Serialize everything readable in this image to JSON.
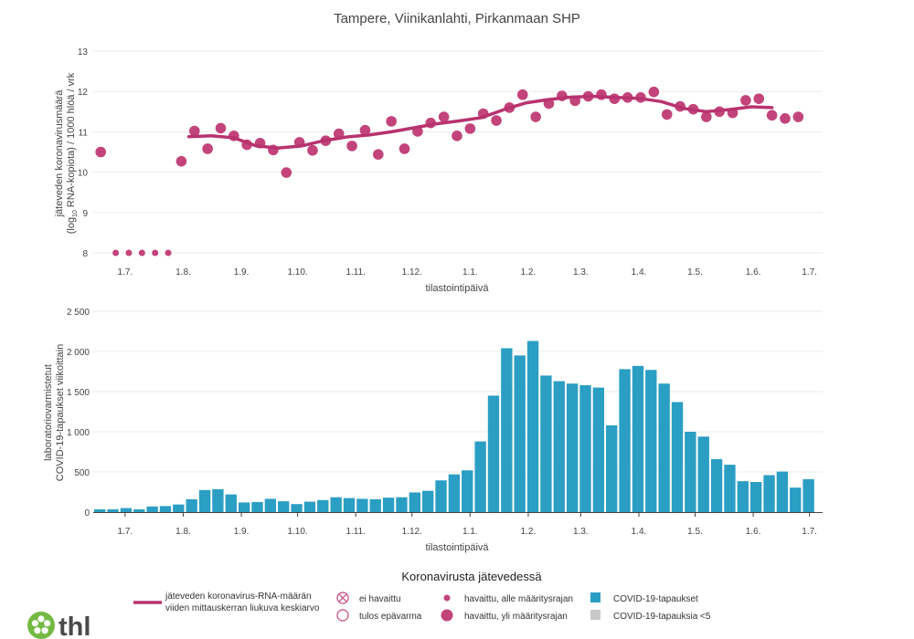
{
  "title": "Tampere, Viinikanlahti, Pirkanmaan SHP",
  "chart_data": [
    {
      "type": "scatter",
      "ylabel_line1": "jäteveden koronavirusmäärä",
      "ylabel_line2_pre": "(log",
      "ylabel_line2_sub": "10",
      "ylabel_line2_post": " RNA-kopiota) / 1000 hlöä / vrk",
      "xlabel": "tilastointipäivä",
      "ylim": [
        7.7,
        13
      ],
      "yticks": [
        "8",
        "9",
        "10",
        "11",
        "12",
        "13"
      ],
      "x_start": "2021-06-14",
      "x_end": "2022-07-08",
      "xticks": [
        {
          "date": "2021-07-01",
          "label": "1.7."
        },
        {
          "date": "2021-08-01",
          "label": "1.8."
        },
        {
          "date": "2021-09-01",
          "label": "1.9."
        },
        {
          "date": "2021-10-01",
          "label": "1.10."
        },
        {
          "date": "2021-11-01",
          "label": "1.11."
        },
        {
          "date": "2021-12-01",
          "label": "1.12."
        },
        {
          "date": "2022-01-01",
          "label": "1.1."
        },
        {
          "date": "2022-02-01",
          "label": "1.2."
        },
        {
          "date": "2022-03-01",
          "label": "1.3."
        },
        {
          "date": "2022-04-01",
          "label": "1.4."
        },
        {
          "date": "2022-05-01",
          "label": "1.5."
        },
        {
          "date": "2022-06-01",
          "label": "1.6."
        },
        {
          "date": "2022-07-01",
          "label": "1.7."
        }
      ],
      "below_limit_points": [
        {
          "x": "2021-06-26",
          "y": 8.0
        },
        {
          "x": "2021-07-03",
          "y": 8.0
        },
        {
          "x": "2021-07-10",
          "y": 8.0
        },
        {
          "x": "2021-07-17",
          "y": 8.0
        },
        {
          "x": "2021-07-24",
          "y": 8.0
        }
      ],
      "above_limit_points": [
        {
          "x": "2021-06-18",
          "y": 10.5
        },
        {
          "x": "2021-07-31",
          "y": 10.27
        },
        {
          "x": "2021-08-07",
          "y": 11.02
        },
        {
          "x": "2021-08-14",
          "y": 10.58
        },
        {
          "x": "2021-08-21",
          "y": 11.09
        },
        {
          "x": "2021-08-28",
          "y": 10.9
        },
        {
          "x": "2021-09-04",
          "y": 10.68
        },
        {
          "x": "2021-09-11",
          "y": 10.72
        },
        {
          "x": "2021-09-18",
          "y": 10.55
        },
        {
          "x": "2021-09-25",
          "y": 9.99
        },
        {
          "x": "2021-10-02",
          "y": 10.74
        },
        {
          "x": "2021-10-09",
          "y": 10.54
        },
        {
          "x": "2021-10-16",
          "y": 10.78
        },
        {
          "x": "2021-10-23",
          "y": 10.95
        },
        {
          "x": "2021-10-30",
          "y": 10.65
        },
        {
          "x": "2021-11-06",
          "y": 11.04
        },
        {
          "x": "2021-11-13",
          "y": 10.44
        },
        {
          "x": "2021-11-20",
          "y": 11.26
        },
        {
          "x": "2021-11-27",
          "y": 10.58
        },
        {
          "x": "2021-12-04",
          "y": 11.01
        },
        {
          "x": "2021-12-11",
          "y": 11.22
        },
        {
          "x": "2021-12-18",
          "y": 11.37
        },
        {
          "x": "2021-12-25",
          "y": 10.9
        },
        {
          "x": "2022-01-01",
          "y": 11.08
        },
        {
          "x": "2022-01-08",
          "y": 11.45
        },
        {
          "x": "2022-01-15",
          "y": 11.28
        },
        {
          "x": "2022-01-22",
          "y": 11.6
        },
        {
          "x": "2022-01-29",
          "y": 11.92
        },
        {
          "x": "2022-02-05",
          "y": 11.37
        },
        {
          "x": "2022-02-12",
          "y": 11.7
        },
        {
          "x": "2022-02-19",
          "y": 11.89
        },
        {
          "x": "2022-02-26",
          "y": 11.77
        },
        {
          "x": "2022-03-05",
          "y": 11.88
        },
        {
          "x": "2022-03-12",
          "y": 11.92
        },
        {
          "x": "2022-03-19",
          "y": 11.82
        },
        {
          "x": "2022-03-26",
          "y": 11.85
        },
        {
          "x": "2022-04-02",
          "y": 11.85
        },
        {
          "x": "2022-04-09",
          "y": 11.99
        },
        {
          "x": "2022-04-16",
          "y": 11.43
        },
        {
          "x": "2022-04-23",
          "y": 11.63
        },
        {
          "x": "2022-04-30",
          "y": 11.56
        },
        {
          "x": "2022-05-07",
          "y": 11.37
        },
        {
          "x": "2022-05-14",
          "y": 11.5
        },
        {
          "x": "2022-05-21",
          "y": 11.47
        },
        {
          "x": "2022-05-28",
          "y": 11.78
        },
        {
          "x": "2022-06-04",
          "y": 11.82
        },
        {
          "x": "2022-06-11",
          "y": 11.41
        },
        {
          "x": "2022-06-18",
          "y": 11.33
        },
        {
          "x": "2022-06-25",
          "y": 11.37
        }
      ],
      "moving_average": [
        {
          "x": "2021-08-04",
          "y": 10.88
        },
        {
          "x": "2021-08-16",
          "y": 10.9
        },
        {
          "x": "2021-08-28",
          "y": 10.85
        },
        {
          "x": "2021-09-09",
          "y": 10.65
        },
        {
          "x": "2021-09-21",
          "y": 10.6
        },
        {
          "x": "2021-10-03",
          "y": 10.65
        },
        {
          "x": "2021-10-15",
          "y": 10.78
        },
        {
          "x": "2021-10-27",
          "y": 10.87
        },
        {
          "x": "2021-11-08",
          "y": 10.92
        },
        {
          "x": "2021-11-20",
          "y": 11.0
        },
        {
          "x": "2021-12-02",
          "y": 11.1
        },
        {
          "x": "2021-12-14",
          "y": 11.2
        },
        {
          "x": "2021-12-26",
          "y": 11.27
        },
        {
          "x": "2022-01-07",
          "y": 11.35
        },
        {
          "x": "2022-01-19",
          "y": 11.55
        },
        {
          "x": "2022-01-31",
          "y": 11.72
        },
        {
          "x": "2022-02-12",
          "y": 11.8
        },
        {
          "x": "2022-02-24",
          "y": 11.86
        },
        {
          "x": "2022-03-08",
          "y": 11.88
        },
        {
          "x": "2022-03-20",
          "y": 11.85
        },
        {
          "x": "2022-04-01",
          "y": 11.83
        },
        {
          "x": "2022-04-13",
          "y": 11.75
        },
        {
          "x": "2022-04-25",
          "y": 11.58
        },
        {
          "x": "2022-05-07",
          "y": 11.5
        },
        {
          "x": "2022-05-19",
          "y": 11.55
        },
        {
          "x": "2022-05-31",
          "y": 11.62
        },
        {
          "x": "2022-06-11",
          "y": 11.6
        }
      ]
    },
    {
      "type": "bar",
      "ylabel_line1": "laboratoriovarmistetut",
      "ylabel_line2": "COVID-19-tapaukset viikoittain",
      "xlabel": "tilastointipäivä",
      "ylim": [
        0,
        2500
      ],
      "yticks": [
        {
          "value": 0,
          "label": "0"
        },
        {
          "value": 500,
          "label": "500"
        },
        {
          "value": 1000,
          "label": "1 000"
        },
        {
          "value": 1500,
          "label": "1 500"
        },
        {
          "value": 2000,
          "label": "2 000"
        },
        {
          "value": 2500,
          "label": "2 500"
        }
      ],
      "week_starts": [
        "2021-06-14",
        "2021-06-21",
        "2021-06-28",
        "2021-07-05",
        "2021-07-12",
        "2021-07-19",
        "2021-07-26",
        "2021-08-02",
        "2021-08-09",
        "2021-08-16",
        "2021-08-23",
        "2021-08-30",
        "2021-09-06",
        "2021-09-13",
        "2021-09-20",
        "2021-09-27",
        "2021-10-04",
        "2021-10-11",
        "2021-10-18",
        "2021-10-25",
        "2021-11-01",
        "2021-11-08",
        "2021-11-15",
        "2021-11-22",
        "2021-11-29",
        "2021-12-06",
        "2021-12-13",
        "2021-12-20",
        "2021-12-27",
        "2022-01-03",
        "2022-01-10",
        "2022-01-17",
        "2022-01-24",
        "2022-01-31",
        "2022-02-07",
        "2022-02-14",
        "2022-02-21",
        "2022-02-28",
        "2022-03-07",
        "2022-03-14",
        "2022-03-21",
        "2022-03-28",
        "2022-04-04",
        "2022-04-11",
        "2022-04-18",
        "2022-04-25",
        "2022-05-02",
        "2022-05-09",
        "2022-05-16",
        "2022-05-23",
        "2022-05-30",
        "2022-06-06",
        "2022-06-13",
        "2022-06-20"
      ],
      "values": [
        35,
        35,
        50,
        35,
        70,
        75,
        95,
        160,
        275,
        285,
        220,
        120,
        125,
        165,
        135,
        100,
        130,
        150,
        185,
        175,
        165,
        160,
        180,
        185,
        245,
        265,
        395,
        470,
        520,
        880,
        1450,
        2040,
        1950,
        2130,
        1700,
        1630,
        1600,
        1580,
        1550,
        1080,
        1780,
        1820,
        1770,
        1600,
        1370,
        1000,
        940,
        660,
        590,
        385,
        375,
        460,
        505,
        305
      ],
      "xticks": [
        {
          "date": "2021-07-01",
          "label": "1.7."
        },
        {
          "date": "2021-08-01",
          "label": "1.8."
        },
        {
          "date": "2021-09-01",
          "label": "1.9."
        },
        {
          "date": "2021-10-01",
          "label": "1.10."
        },
        {
          "date": "2021-11-01",
          "label": "1.11."
        },
        {
          "date": "2021-12-01",
          "label": "1.12."
        },
        {
          "date": "2022-01-01",
          "label": "1.1."
        },
        {
          "date": "2022-02-01",
          "label": "1.2."
        },
        {
          "date": "2022-03-01",
          "label": "1.3."
        },
        {
          "date": "2022-04-01",
          "label": "1.4."
        },
        {
          "date": "2022-05-01",
          "label": "1.5."
        },
        {
          "date": "2022-06-01",
          "label": "1.6."
        },
        {
          "date": "2022-07-01",
          "label": "1.7."
        }
      ],
      "extra_bar": {
        "week": "2022-06-27",
        "value": 410
      }
    }
  ],
  "legend": {
    "title": "Koronavirusta jätevedessä",
    "line_label_1": "jäteveden koronavirus-RNA-määrän",
    "line_label_2": "viiden mittauskerran liukuva keskiarvo",
    "not_detected": "ei havaittu",
    "uncertain": "tulos epävarma",
    "below_limit": "havaittu, alle määritysrajan",
    "above_limit": "havaittu, yli määritysrajan",
    "cases": "COVID-19-tapaukset",
    "cases_small": "COVID-19-tapauksia <5"
  },
  "logo": {
    "text": "thl"
  },
  "colors": {
    "marker": "#c2447a",
    "line": "#b8336e",
    "bar": "#2b9ec4",
    "bar_small": "#c8c8c8",
    "logo_green": "#74b943",
    "logo_text": "#4a4a4a"
  }
}
